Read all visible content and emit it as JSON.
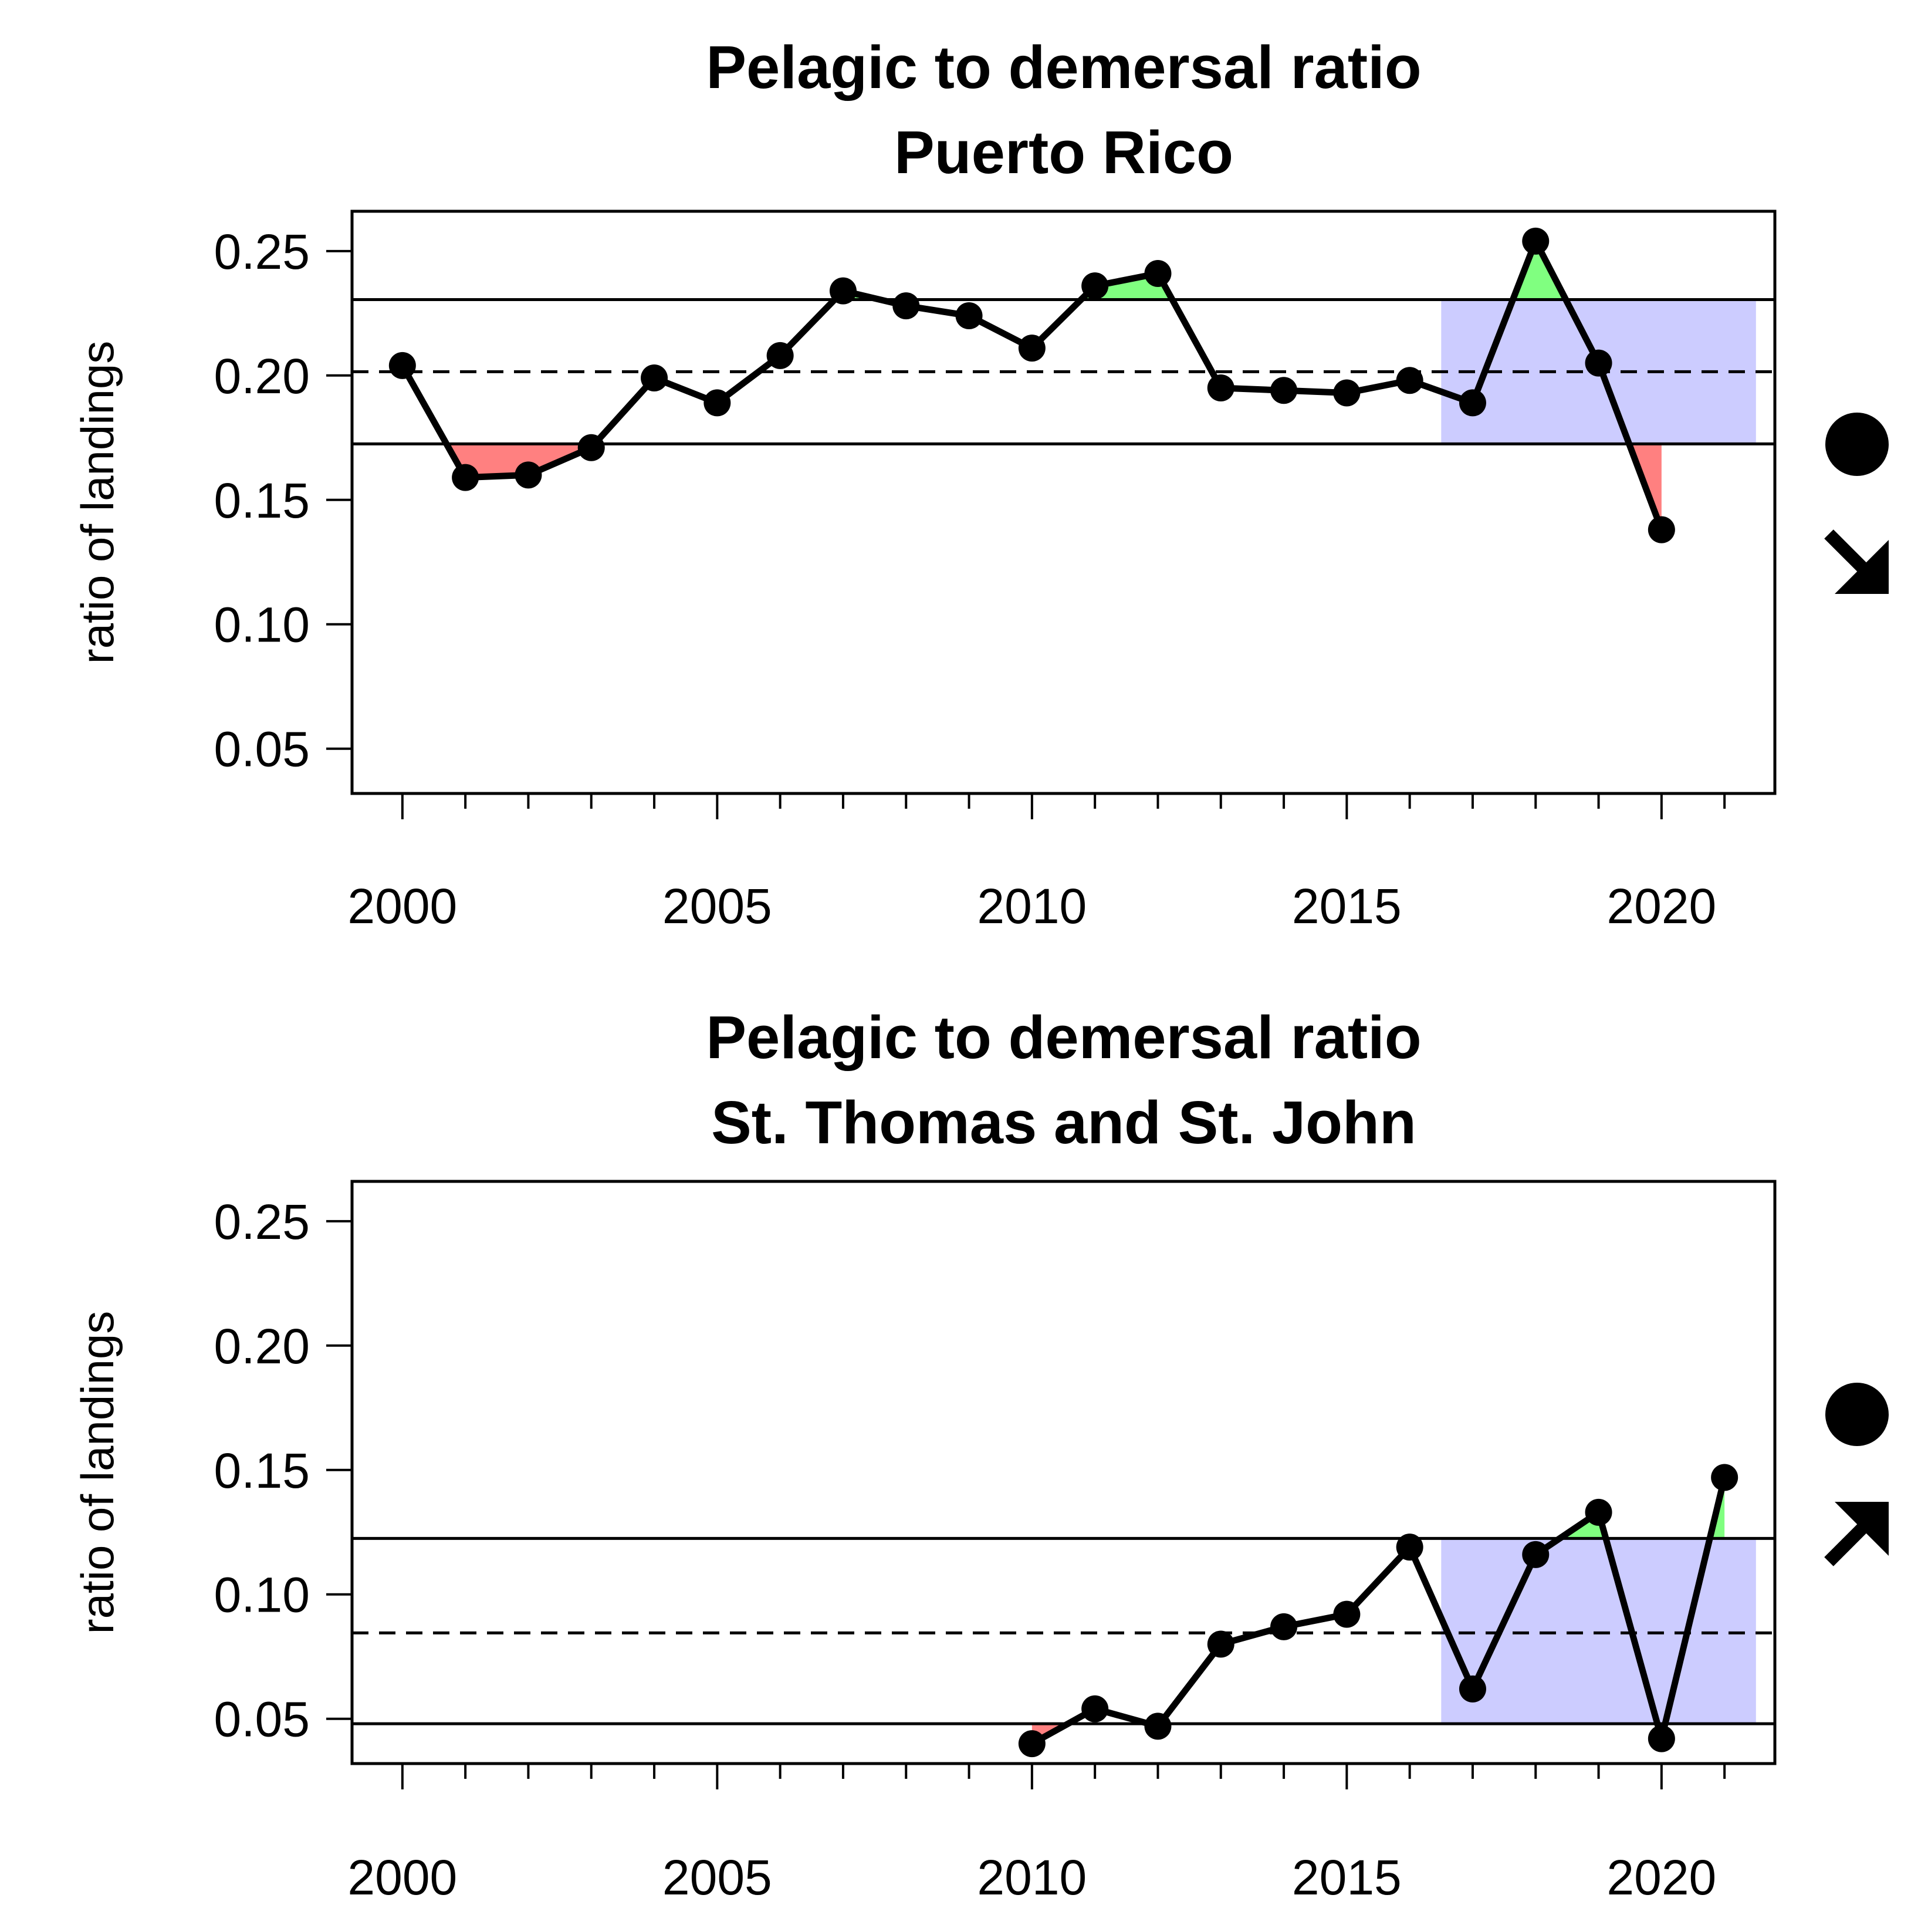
{
  "chart_data": [
    {
      "type": "line",
      "title": "Pelagic to demersal ratio",
      "subtitle": "Puerto Rico",
      "xlabel": "",
      "ylabel": "ratio of landings",
      "x_ticks": [
        "2000",
        "2005",
        "2010",
        "2015",
        "2020"
      ],
      "y_ticks": [
        "0.05",
        "0.10",
        "0.15",
        "0.20",
        "0.25"
      ],
      "xlim": [
        1999.2,
        2021.8
      ],
      "ylim": [
        0.032,
        0.266
      ],
      "x": [
        2000,
        2001,
        2002,
        2003,
        2004,
        2005,
        2006,
        2007,
        2008,
        2009,
        2010,
        2011,
        2012,
        2013,
        2014,
        2015,
        2016,
        2017,
        2018,
        2019,
        2020
      ],
      "series": [
        {
          "values": [
            0.204,
            0.159,
            0.16,
            0.171,
            0.199,
            0.189,
            0.208,
            0.234,
            0.228,
            0.224,
            0.211,
            0.236,
            0.241,
            0.195,
            0.194,
            0.193,
            0.198,
            0.189,
            0.254,
            0.205,
            0.138
          ]
        }
      ],
      "mean": 0.2015,
      "upper_bound": 0.2305,
      "lower_bound": 0.1725,
      "recent_window": [
        2016.5,
        2021.5
      ],
      "status_symbols": {
        "mean_status": "filled-circle",
        "trend": "arrow-down-right"
      },
      "colors": {
        "above": "#80ff80",
        "below": "#ff8080",
        "recent_window": "#ccccff",
        "line": "#000000"
      },
      "grid": false
    },
    {
      "type": "line",
      "title": "Pelagic to demersal ratio",
      "subtitle": "St. Thomas and St. John",
      "xlabel": "",
      "ylabel": "ratio of landings",
      "x_ticks": [
        "2000",
        "2005",
        "2010",
        "2015",
        "2020"
      ],
      "y_ticks": [
        "0.05",
        "0.10",
        "0.15",
        "0.20",
        "0.25"
      ],
      "xlim": [
        1999.2,
        2021.8
      ],
      "ylim": [
        0.032,
        0.266
      ],
      "x": [
        2010,
        2011,
        2012,
        2013,
        2014,
        2015,
        2016,
        2017,
        2018,
        2019,
        2020,
        2021
      ],
      "series": [
        {
          "values": [
            0.04,
            0.054,
            0.047,
            0.08,
            0.087,
            0.092,
            0.119,
            0.062,
            0.116,
            0.133,
            0.042,
            0.147
          ]
        }
      ],
      "mean": 0.0845,
      "upper_bound": 0.1225,
      "lower_bound": 0.048,
      "recent_window": [
        2016.5,
        2021.5
      ],
      "status_symbols": {
        "mean_status": "filled-circle",
        "trend": "arrow-up-right"
      },
      "colors": {
        "above": "#80ff80",
        "below": "#ff8080",
        "recent_window": "#ccccff",
        "line": "#000000"
      },
      "grid": false
    }
  ]
}
